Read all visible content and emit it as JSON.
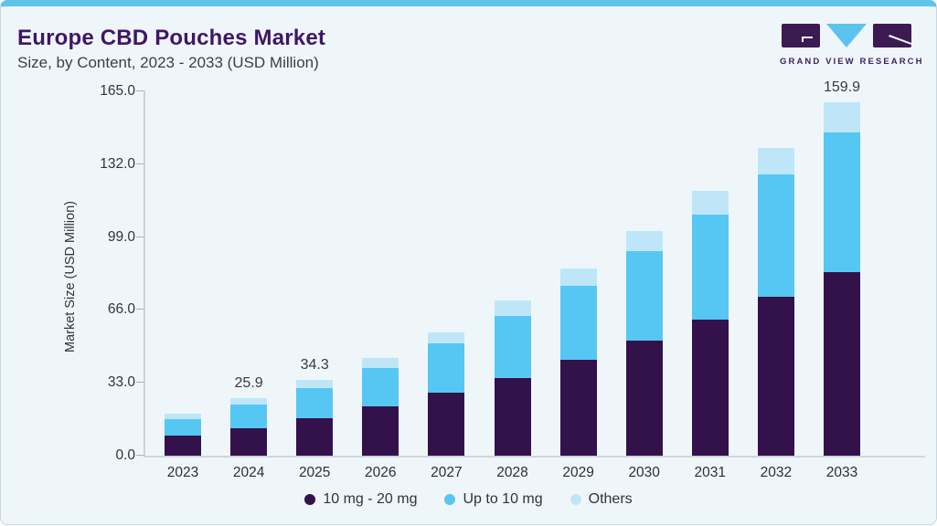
{
  "header": {
    "title": "Europe CBD Pouches Market",
    "subtitle": "Size, by Content, 2023 - 2033 (USD Million)",
    "logo_text": "GRAND VIEW RESEARCH"
  },
  "colors": {
    "accent_strip": "#5ec4ea",
    "card_background": "#eff6fa",
    "title_purple": "#3f1766",
    "series_purple": "#33114b",
    "series_blue": "#56c7f2",
    "series_light_blue": "#bfe6f8",
    "logo_purple": "#3b1b52",
    "logo_blue": "#5bc3ee"
  },
  "chart_data": {
    "type": "bar",
    "stacked": true,
    "title": "Europe CBD Pouches Market Size, by Content, 2023 - 2033 (USD Million)",
    "xlabel": "",
    "ylabel": "Market Size (USD Million)",
    "ylim": [
      0,
      165
    ],
    "ytick_labels": [
      "0.0",
      "33.0",
      "66.0",
      "99.0",
      "132.0",
      "165.0"
    ],
    "grid": false,
    "legend_position": "bottom",
    "categories": [
      "2023",
      "2024",
      "2025",
      "2026",
      "2027",
      "2028",
      "2029",
      "2030",
      "2031",
      "2032",
      "2033"
    ],
    "series": [
      {
        "name": "10 mg - 20 mg",
        "color": "#33114b",
        "values": [
          9.2,
          12.6,
          17.1,
          22.3,
          28.5,
          35.3,
          43.4,
          52.2,
          61.8,
          72.1,
          83.1
        ]
      },
      {
        "name": "Up to 10 mg",
        "color": "#56c7f2",
        "values": [
          7.5,
          10.6,
          13.5,
          17.5,
          22.3,
          27.9,
          33.4,
          40.3,
          47.3,
          55.2,
          63.3
        ]
      },
      {
        "name": "Others",
        "color": "#bfe6f8",
        "values": [
          2.2,
          2.7,
          3.7,
          4.6,
          5.2,
          6.9,
          8.1,
          9.4,
          11.0,
          12.1,
          13.5
        ]
      }
    ],
    "totals": [
      18.9,
      25.9,
      34.3,
      44.4,
      56.0,
      70.1,
      84.9,
      101.9,
      120.1,
      139.4,
      159.9
    ],
    "annotations": [
      {
        "category": "2024",
        "text": "25.9"
      },
      {
        "category": "2025",
        "text": "34.3"
      },
      {
        "category": "2033",
        "text": "159.9"
      }
    ]
  }
}
